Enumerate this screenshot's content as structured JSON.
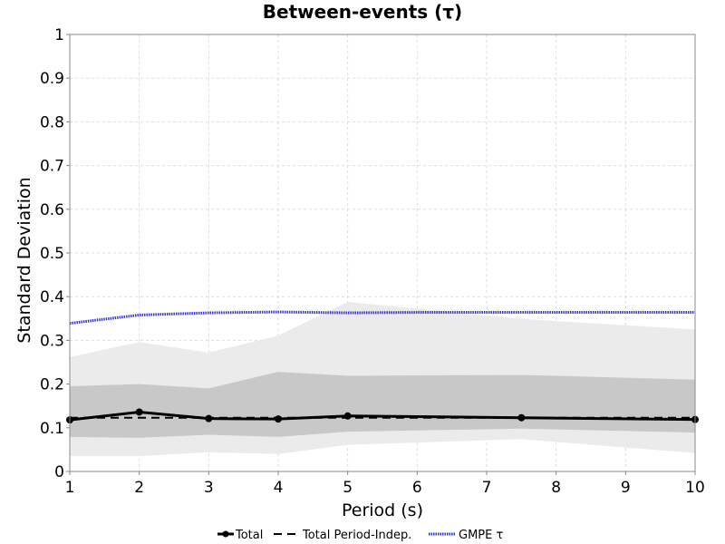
{
  "chart_data": {
    "type": "line",
    "title": "Between-events (τ)",
    "xlabel": "Period (s)",
    "ylabel": "Standard Deviation",
    "xlim": [
      1,
      10
    ],
    "ylim": [
      0,
      1
    ],
    "xticks": [
      1,
      2,
      3,
      4,
      5,
      6,
      7,
      8,
      9,
      10
    ],
    "yticks": [
      0,
      0.1,
      0.2,
      0.3,
      0.4,
      0.5,
      0.6,
      0.7,
      0.8,
      0.9,
      1
    ],
    "grid": true,
    "legend": {
      "placement": "bottom-center"
    },
    "series": [
      {
        "name": "Total",
        "style": "solid-with-markers",
        "color": "#000000",
        "x": [
          1,
          2,
          3,
          4,
          5,
          7.5,
          10
        ],
        "y": [
          0.118,
          0.136,
          0.121,
          0.12,
          0.127,
          0.123,
          0.119
        ]
      },
      {
        "name": "Total Period-Indep.",
        "style": "dashed",
        "color": "#000000",
        "x": [
          1,
          10
        ],
        "y": [
          0.123,
          0.123
        ]
      },
      {
        "name": "GMPE τ",
        "style": "dotted",
        "color": "#3333dd",
        "x": [
          1,
          2,
          3,
          4,
          5,
          6,
          7,
          8,
          9,
          10
        ],
        "y": [
          0.339,
          0.358,
          0.363,
          0.365,
          0.363,
          0.364,
          0.364,
          0.364,
          0.364,
          0.364
        ]
      }
    ],
    "bands": [
      {
        "color": "#ebebeb",
        "x": [
          1,
          2,
          3,
          4,
          5,
          7.5,
          10
        ],
        "upper": [
          0.262,
          0.296,
          0.272,
          0.311,
          0.388,
          0.349,
          0.325
        ],
        "lower": [
          0.035,
          0.035,
          0.044,
          0.04,
          0.061,
          0.074,
          0.042
        ]
      },
      {
        "color": "#c8c8c8",
        "x": [
          1,
          2,
          3,
          4,
          5,
          7.5,
          10
        ],
        "upper": [
          0.195,
          0.2,
          0.19,
          0.228,
          0.219,
          0.221,
          0.21
        ],
        "lower": [
          0.079,
          0.077,
          0.084,
          0.079,
          0.091,
          0.098,
          0.089
        ]
      }
    ]
  }
}
